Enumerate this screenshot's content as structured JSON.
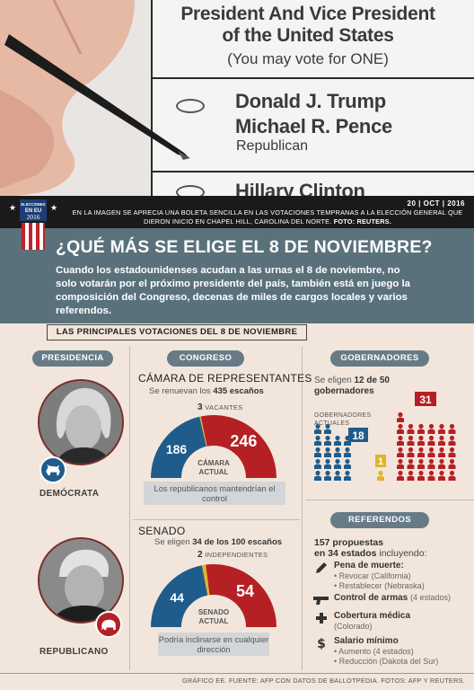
{
  "photo": {
    "ballot_title": "President And Vice President",
    "ballot_title_2": "of the United States",
    "ballot_instruction": "(You may vote for ONE)",
    "candidate_1a": "Donald J. Trump",
    "candidate_1b": "Michael R. Pence",
    "party_1": "Republican",
    "candidate_2": "Hillary Clinton"
  },
  "logo": {
    "line1": "ELECCIONES",
    "line2": "EN EU",
    "line3": "2016"
  },
  "caption": {
    "date": "20 | OCT | 2016",
    "text": "EN LA IMAGEN SE APRECIA UNA BOLETA SENCILLA EN LAS VOTACIONES TEMPRANAS A LA ELECCIÓN GENERAL QUE DIERON INICIO EN CHAPEL HILL, CAROLINA DEL NORTE.",
    "credit": "FOTO: REUTERS."
  },
  "header": {
    "headline": "¿QUÉ MÁS SE ELIGE EL 8 DE NOVIEMBRE?",
    "lede": "Cuando los estadounidenses acudan a las urnas el 8 de noviembre, no solo votarán por el próximo presidente del país, también está en juego la composición del Congreso, decenas de miles de cargos locales y varios referendos."
  },
  "section_label": "LAS PRINCIPALES VOTACIONES DEL 8 DE NOVIEMBRE",
  "pills": {
    "presidencia": "PRESIDENCIA",
    "congreso": "CONGRESO",
    "gobernadores": "GOBERNADORES",
    "referendos": "REFERENDOS"
  },
  "presidencia": {
    "democrat_label": "DEMÓCRATA",
    "republican_label": "REPUBLICANO"
  },
  "camara": {
    "title": "CÁMARA DE REPRESENTANTES",
    "sub_pre": "Se renuevan los",
    "sub_bold": "435 escaños",
    "vacantes_num": "3",
    "vacantes_label": "VACANTES",
    "dem": 186,
    "rep": 246,
    "vacant": 3,
    "center_1": "CÁMARA",
    "center_2": "ACTUAL",
    "note": "Los republicanos mantendrían el control",
    "colors": {
      "dem": "#1f5c8c",
      "rep": "#b52025",
      "vacant": "#e0b42a"
    }
  },
  "senado": {
    "title": "SENADO",
    "sub_pre": "Se eligen",
    "sub_bold": "34 de los 100 escaños",
    "ind_num": "2",
    "ind_label": "INDEPENDIENTES",
    "dem": 44,
    "rep": 54,
    "ind": 2,
    "center_1": "SENADO",
    "center_2": "ACTUAL",
    "note": "Podría inclinarse en cualquier dirección"
  },
  "gobernadores": {
    "line_pre": "Se eligen",
    "line_bold": "12 de 50",
    "line_bold_2": "gobernadores",
    "actuales_1": "GOBERNADORES",
    "actuales_2": "ACTUALES",
    "dem": 18,
    "rep": 31,
    "ind": 1
  },
  "referendos": {
    "lead_bold": "157 propuestas",
    "lead_bold_2": "en 34 estados",
    "lead_rest": "incluyendo:",
    "items": [
      {
        "icon": "pen-icon",
        "title": "Pena de muerte:",
        "subs": [
          "• Revocar (California)",
          "• Restablecer (Nebraska)"
        ]
      },
      {
        "icon": "gun-icon",
        "title": "Control de armas",
        "extra": "(4 estados)",
        "subs": []
      },
      {
        "icon": "medical-cross-icon",
        "title": "Cobertura médica",
        "subs": [
          "(Colorado)"
        ]
      },
      {
        "icon": "dollar-icon",
        "title": "Salario mínimo",
        "subs": [
          "• Aumento (4 estados)",
          "• Reducción (Dakota del Sur)"
        ]
      }
    ]
  },
  "footer": "GRÁFICO EE. FUENTE: AFP CON DATOS DE BALLOTPEDIA. FOTOS: AFP Y REUTERS."
}
